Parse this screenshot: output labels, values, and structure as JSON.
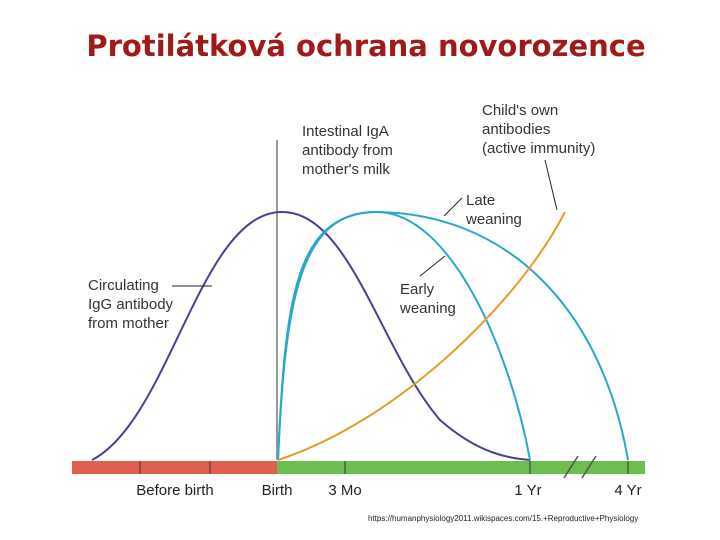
{
  "header": {
    "title": "Protilátková ochrana novorozence"
  },
  "labels": {
    "igg": [
      "Circulating",
      "IgG antibody",
      "from mother"
    ],
    "iga": [
      "Intestinal IgA",
      "antibody from",
      "mother's milk"
    ],
    "own": [
      "Child's own",
      "antibodies",
      "(active immunity)"
    ],
    "late": [
      "Late",
      "weaning"
    ],
    "early": [
      "Early",
      "weaning"
    ]
  },
  "timeline": [
    "Before birth",
    "Birth",
    "3 Mo",
    "1 Yr",
    "4 Yr"
  ],
  "source": "https://humanphysiology2011.wikispaces.com/15.+Reproductive+Physiology"
}
